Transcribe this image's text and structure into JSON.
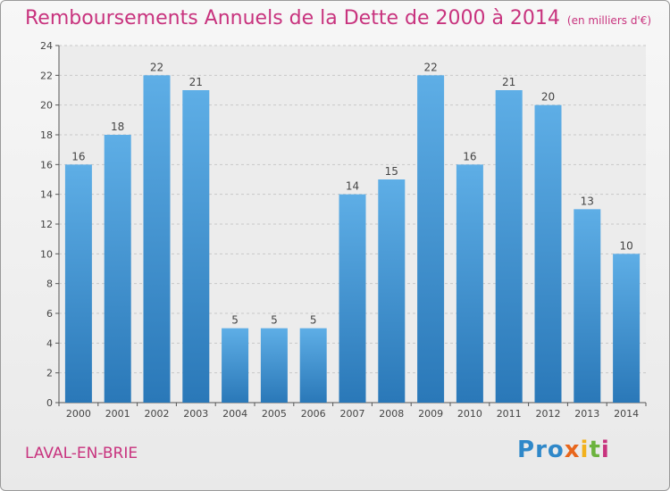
{
  "page": {
    "title": "Remboursements Annuels de la Dette de 2000 à 2014",
    "subtitle": "(en milliers d'€)",
    "place": "LAVAL-EN-BRIE",
    "logo_text": "Proxiti"
  },
  "chart_data": {
    "type": "bar",
    "title": "Remboursements Annuels de la Dette de 2000 à 2014",
    "subtitle": "(en milliers d'€)",
    "xlabel": "",
    "ylabel": "",
    "categories": [
      "2000",
      "2001",
      "2002",
      "2003",
      "2004",
      "2005",
      "2006",
      "2007",
      "2008",
      "2009",
      "2010",
      "2011",
      "2012",
      "2013",
      "2014"
    ],
    "values": [
      16,
      18,
      22,
      21,
      5,
      5,
      5,
      14,
      15,
      22,
      16,
      21,
      20,
      13,
      10
    ],
    "ylim": [
      0,
      24
    ],
    "yticks": [
      0,
      2,
      4,
      6,
      8,
      10,
      12,
      14,
      16,
      18,
      20,
      22,
      24
    ],
    "grid": true,
    "legend": "none",
    "colors": {
      "bar_top": "#5eaee6",
      "bar_bottom": "#2a78b8",
      "label": "#444444",
      "grid": "#c8c8c8"
    }
  }
}
